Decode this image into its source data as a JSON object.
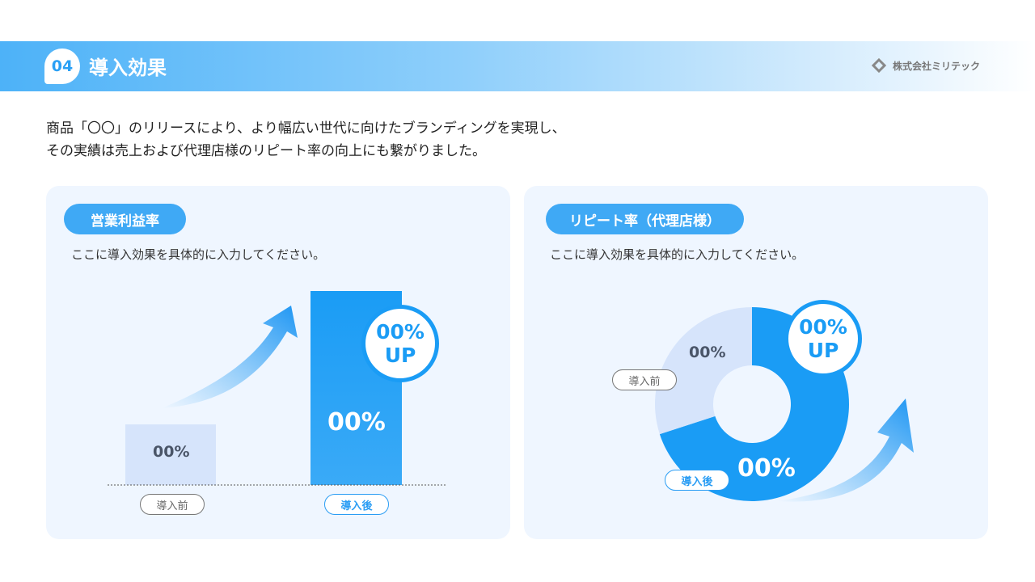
{
  "header": {
    "number": "04",
    "title": "導入効果",
    "company": "株式会社ミリテック"
  },
  "lead": [
    "商品「〇〇」のリリースにより、より幅広い世代に向けたブランディングを実現し、",
    "その実績は売上および代理店様のリピート率の向上にも繋がりました。"
  ],
  "colors": {
    "accent": "#1a9cf5",
    "light": "#d6e4fb",
    "panel": "#eff6ff"
  },
  "left": {
    "title": "営業利益率",
    "desc": "ここに導入効果を具体的に入力してください。",
    "before_label": "導入前",
    "after_label": "導入後",
    "before_value": "00%",
    "after_value": "00%",
    "badge_line1": "00%",
    "badge_line2": "UP"
  },
  "right": {
    "title": "リピート率（代理店様）",
    "desc": "ここに導入効果を具体的に入力してください。",
    "before_label": "導入前",
    "after_label": "導入後",
    "before_value": "00%",
    "after_value": "00%",
    "badge_line1": "00%",
    "badge_line2": "UP",
    "before_share": 30,
    "after_share": 70
  }
}
